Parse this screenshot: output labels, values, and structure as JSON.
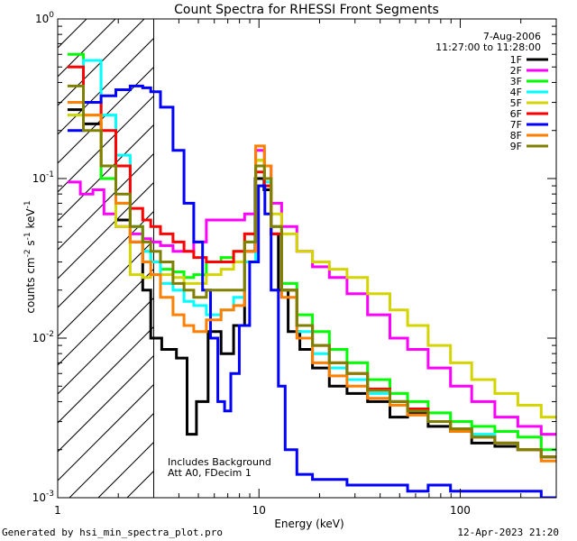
{
  "chart_data": {
    "type": "line",
    "title": "Count Spectra for RHESSI Front Segments",
    "xlabel": "Energy (keV)",
    "ylabel_base": "counts cm",
    "ylabel_exp1": "-2",
    "ylabel_mid": " s",
    "ylabel_exp2": "-1",
    "ylabel_end": " keV",
    "ylabel_exp3": "-1",
    "x_scale": "log",
    "y_scale": "log",
    "xlim": [
      1,
      300
    ],
    "ylim": [
      0.001,
      1
    ],
    "x_ticks": [
      {
        "value": 1,
        "label": "1"
      },
      {
        "value": 10,
        "label": "10"
      },
      {
        "value": 100,
        "label": "100"
      }
    ],
    "y_ticks": [
      {
        "value": 1,
        "base": "10",
        "exp": "0"
      },
      {
        "value": 0.1,
        "base": "10",
        "exp": "-1"
      },
      {
        "value": 0.01,
        "base": "10",
        "exp": "-2"
      },
      {
        "value": 0.001,
        "base": "10",
        "exp": "-3"
      }
    ],
    "date_label": "7-Aug-2006",
    "time_label": "11:27:00 to 11:28:00",
    "shaded_region_keV": [
      1,
      3
    ],
    "annotation_1": "Includes Background",
    "annotation_2": "Att A0, FDecim 1",
    "series": [
      {
        "name": "1F",
        "color": "#000000",
        "points": [
          [
            1.2,
            0.27
          ],
          [
            1.5,
            0.22
          ],
          [
            1.8,
            0.12
          ],
          [
            2.1,
            0.055
          ],
          [
            2.5,
            0.04
          ],
          [
            2.8,
            0.02
          ],
          [
            3.0,
            0.01
          ],
          [
            3.6,
            0.0085
          ],
          [
            4.2,
            0.0075
          ],
          [
            4.6,
            0.0025
          ],
          [
            5.2,
            0.004
          ],
          [
            6.0,
            0.011
          ],
          [
            7.0,
            0.008
          ],
          [
            8.0,
            0.012
          ],
          [
            9.0,
            0.035
          ],
          [
            10.2,
            0.1
          ],
          [
            11.0,
            0.085
          ],
          [
            12.0,
            0.045
          ],
          [
            13.0,
            0.02
          ],
          [
            15.0,
            0.011
          ],
          [
            17.0,
            0.0085
          ],
          [
            20.0,
            0.0065
          ],
          [
            25.0,
            0.005
          ],
          [
            30.0,
            0.0045
          ],
          [
            40.0,
            0.004
          ],
          [
            50.0,
            0.0032
          ],
          [
            60.0,
            0.0034
          ],
          [
            80.0,
            0.0028
          ],
          [
            100.0,
            0.0026
          ],
          [
            130.0,
            0.0022
          ],
          [
            170.0,
            0.0021
          ],
          [
            220.0,
            0.002
          ],
          [
            290.0,
            0.0018
          ]
        ]
      },
      {
        "name": "2F",
        "color": "#ff00ff",
        "points": [
          [
            1.2,
            0.095
          ],
          [
            1.4,
            0.08
          ],
          [
            1.6,
            0.085
          ],
          [
            1.8,
            0.06
          ],
          [
            2.1,
            0.05
          ],
          [
            2.5,
            0.045
          ],
          [
            2.8,
            0.042
          ],
          [
            3.0,
            0.04
          ],
          [
            3.5,
            0.038
          ],
          [
            4.0,
            0.035
          ],
          [
            4.5,
            0.035
          ],
          [
            5.0,
            0.04
          ],
          [
            6.0,
            0.055
          ],
          [
            7.0,
            0.055
          ],
          [
            8.0,
            0.055
          ],
          [
            9.0,
            0.06
          ],
          [
            10.3,
            0.15
          ],
          [
            11.0,
            0.12
          ],
          [
            12.0,
            0.07
          ],
          [
            14.0,
            0.05
          ],
          [
            17.0,
            0.035
          ],
          [
            20.0,
            0.028
          ],
          [
            25.0,
            0.024
          ],
          [
            30.0,
            0.019
          ],
          [
            40.0,
            0.014
          ],
          [
            50.0,
            0.01
          ],
          [
            60.0,
            0.0085
          ],
          [
            80.0,
            0.0065
          ],
          [
            100.0,
            0.005
          ],
          [
            130.0,
            0.004
          ],
          [
            170.0,
            0.0032
          ],
          [
            220.0,
            0.0028
          ],
          [
            290.0,
            0.0025
          ]
        ]
      },
      {
        "name": "3F",
        "color": "#00ff00",
        "points": [
          [
            1.2,
            0.6
          ],
          [
            1.5,
            0.3
          ],
          [
            1.8,
            0.1
          ],
          [
            2.1,
            0.07
          ],
          [
            2.5,
            0.05
          ],
          [
            2.8,
            0.035
          ],
          [
            3.0,
            0.03
          ],
          [
            3.5,
            0.027
          ],
          [
            4.0,
            0.026
          ],
          [
            4.5,
            0.024
          ],
          [
            5.0,
            0.025
          ],
          [
            6.0,
            0.03
          ],
          [
            7.0,
            0.032
          ],
          [
            8.0,
            0.035
          ],
          [
            9.0,
            0.04
          ],
          [
            10.3,
            0.13
          ],
          [
            11.0,
            0.1
          ],
          [
            12.0,
            0.05
          ],
          [
            14.0,
            0.022
          ],
          [
            17.0,
            0.014
          ],
          [
            20.0,
            0.011
          ],
          [
            25.0,
            0.0085
          ],
          [
            30.0,
            0.007
          ],
          [
            40.0,
            0.0055
          ],
          [
            50.0,
            0.0045
          ],
          [
            60.0,
            0.004
          ],
          [
            80.0,
            0.0034
          ],
          [
            100.0,
            0.003
          ],
          [
            130.0,
            0.0028
          ],
          [
            170.0,
            0.0026
          ],
          [
            220.0,
            0.0024
          ],
          [
            290.0,
            0.002
          ]
        ]
      },
      {
        "name": "4F",
        "color": "#00ffff",
        "points": [
          [
            1.2,
            0.25
          ],
          [
            1.5,
            0.55
          ],
          [
            1.8,
            0.25
          ],
          [
            2.1,
            0.14
          ],
          [
            2.5,
            0.05
          ],
          [
            2.8,
            0.035
          ],
          [
            3.0,
            0.03
          ],
          [
            3.5,
            0.022
          ],
          [
            4.0,
            0.02
          ],
          [
            4.5,
            0.017
          ],
          [
            5.0,
            0.016
          ],
          [
            6.0,
            0.014
          ],
          [
            7.0,
            0.015
          ],
          [
            8.0,
            0.018
          ],
          [
            9.0,
            0.03
          ],
          [
            10.3,
            0.12
          ],
          [
            11.0,
            0.095
          ],
          [
            12.0,
            0.05
          ],
          [
            14.0,
            0.02
          ],
          [
            17.0,
            0.011
          ],
          [
            20.0,
            0.008
          ],
          [
            25.0,
            0.0065
          ],
          [
            30.0,
            0.0055
          ],
          [
            40.0,
            0.0045
          ],
          [
            50.0,
            0.004
          ],
          [
            60.0,
            0.0035
          ],
          [
            80.0,
            0.003
          ],
          [
            100.0,
            0.0027
          ],
          [
            130.0,
            0.0025
          ],
          [
            170.0,
            0.0022
          ],
          [
            220.0,
            0.002
          ],
          [
            290.0,
            0.0018
          ]
        ]
      },
      {
        "name": "5F",
        "color": "#d4d400",
        "points": [
          [
            1.2,
            0.25
          ],
          [
            1.5,
            0.25
          ],
          [
            1.8,
            0.12
          ],
          [
            2.1,
            0.05
          ],
          [
            2.5,
            0.025
          ],
          [
            2.8,
            0.024
          ],
          [
            3.0,
            0.025
          ],
          [
            3.5,
            0.025
          ],
          [
            4.0,
            0.024
          ],
          [
            4.5,
            0.022
          ],
          [
            5.0,
            0.022
          ],
          [
            6.0,
            0.025
          ],
          [
            7.0,
            0.027
          ],
          [
            8.0,
            0.03
          ],
          [
            9.0,
            0.045
          ],
          [
            10.3,
            0.13
          ],
          [
            11.0,
            0.1
          ],
          [
            12.0,
            0.06
          ],
          [
            14.0,
            0.045
          ],
          [
            17.0,
            0.035
          ],
          [
            20.0,
            0.03
          ],
          [
            25.0,
            0.027
          ],
          [
            30.0,
            0.024
          ],
          [
            40.0,
            0.019
          ],
          [
            50.0,
            0.015
          ],
          [
            60.0,
            0.012
          ],
          [
            80.0,
            0.009
          ],
          [
            100.0,
            0.007
          ],
          [
            130.0,
            0.0055
          ],
          [
            170.0,
            0.0045
          ],
          [
            220.0,
            0.0038
          ],
          [
            290.0,
            0.0032
          ]
        ]
      },
      {
        "name": "6F",
        "color": "#ff0000",
        "points": [
          [
            1.2,
            0.5
          ],
          [
            1.5,
            0.3
          ],
          [
            1.8,
            0.2
          ],
          [
            2.1,
            0.12
          ],
          [
            2.5,
            0.065
          ],
          [
            2.8,
            0.055
          ],
          [
            3.0,
            0.05
          ],
          [
            3.5,
            0.045
          ],
          [
            4.0,
            0.04
          ],
          [
            4.5,
            0.035
          ],
          [
            5.0,
            0.032
          ],
          [
            6.0,
            0.03
          ],
          [
            7.0,
            0.03
          ],
          [
            8.0,
            0.035
          ],
          [
            9.0,
            0.045
          ],
          [
            10.3,
            0.11
          ],
          [
            11.0,
            0.09
          ],
          [
            12.0,
            0.045
          ],
          [
            14.0,
            0.02
          ],
          [
            17.0,
            0.012
          ],
          [
            20.0,
            0.009
          ],
          [
            25.0,
            0.007
          ],
          [
            30.0,
            0.006
          ],
          [
            40.0,
            0.0048
          ],
          [
            50.0,
            0.004
          ],
          [
            60.0,
            0.0036
          ],
          [
            80.0,
            0.003
          ],
          [
            100.0,
            0.0027
          ],
          [
            130.0,
            0.0024
          ],
          [
            170.0,
            0.0022
          ],
          [
            220.0,
            0.002
          ],
          [
            290.0,
            0.0018
          ]
        ]
      },
      {
        "name": "7F",
        "color": "#0000ff",
        "points": [
          [
            1.2,
            0.2
          ],
          [
            1.5,
            0.3
          ],
          [
            1.8,
            0.33
          ],
          [
            2.1,
            0.36
          ],
          [
            2.5,
            0.38
          ],
          [
            2.8,
            0.37
          ],
          [
            3.0,
            0.35
          ],
          [
            3.5,
            0.28
          ],
          [
            4.0,
            0.15
          ],
          [
            4.5,
            0.07
          ],
          [
            5.0,
            0.04
          ],
          [
            5.5,
            0.02
          ],
          [
            6.0,
            0.01
          ],
          [
            6.5,
            0.004
          ],
          [
            7.0,
            0.0035
          ],
          [
            7.5,
            0.006
          ],
          [
            8.5,
            0.012
          ],
          [
            9.5,
            0.03
          ],
          [
            10.4,
            0.09
          ],
          [
            11.0,
            0.06
          ],
          [
            12.0,
            0.02
          ],
          [
            13.0,
            0.005
          ],
          [
            14.0,
            0.002
          ],
          [
            17.0,
            0.0014
          ],
          [
            20.0,
            0.0013
          ],
          [
            25.0,
            0.0013
          ],
          [
            30.0,
            0.0012
          ],
          [
            40.0,
            0.0012
          ],
          [
            50.0,
            0.0012
          ],
          [
            60.0,
            0.0011
          ],
          [
            80.0,
            0.0012
          ],
          [
            100.0,
            0.0011
          ],
          [
            130.0,
            0.0011
          ],
          [
            170.0,
            0.0011
          ],
          [
            220.0,
            0.0011
          ],
          [
            290.0,
            0.001
          ]
        ]
      },
      {
        "name": "8F",
        "color": "#ff7f00",
        "points": [
          [
            1.2,
            0.3
          ],
          [
            1.5,
            0.25
          ],
          [
            1.8,
            0.12
          ],
          [
            2.1,
            0.07
          ],
          [
            2.5,
            0.04
          ],
          [
            2.8,
            0.03
          ],
          [
            3.0,
            0.025
          ],
          [
            3.5,
            0.018
          ],
          [
            4.0,
            0.014
          ],
          [
            4.5,
            0.012
          ],
          [
            5.0,
            0.011
          ],
          [
            6.0,
            0.013
          ],
          [
            7.0,
            0.015
          ],
          [
            8.0,
            0.016
          ],
          [
            9.0,
            0.035
          ],
          [
            10.3,
            0.16
          ],
          [
            11.0,
            0.12
          ],
          [
            12.0,
            0.05
          ],
          [
            14.0,
            0.018
          ],
          [
            17.0,
            0.01
          ],
          [
            20.0,
            0.007
          ],
          [
            25.0,
            0.0058
          ],
          [
            30.0,
            0.005
          ],
          [
            40.0,
            0.0042
          ],
          [
            50.0,
            0.0038
          ],
          [
            60.0,
            0.0033
          ],
          [
            80.0,
            0.003
          ],
          [
            100.0,
            0.0026
          ],
          [
            130.0,
            0.0024
          ],
          [
            170.0,
            0.0022
          ],
          [
            220.0,
            0.002
          ],
          [
            290.0,
            0.0017
          ]
        ]
      },
      {
        "name": "9F",
        "color": "#808000",
        "points": [
          [
            1.2,
            0.38
          ],
          [
            1.5,
            0.2
          ],
          [
            1.8,
            0.12
          ],
          [
            2.1,
            0.08
          ],
          [
            2.5,
            0.05
          ],
          [
            2.8,
            0.04
          ],
          [
            3.0,
            0.035
          ],
          [
            3.5,
            0.03
          ],
          [
            4.0,
            0.022
          ],
          [
            4.5,
            0.02
          ],
          [
            5.0,
            0.018
          ],
          [
            6.0,
            0.02
          ],
          [
            7.0,
            0.02
          ],
          [
            8.0,
            0.02
          ],
          [
            9.0,
            0.04
          ],
          [
            10.3,
            0.12
          ],
          [
            11.0,
            0.1
          ],
          [
            12.0,
            0.05
          ],
          [
            14.0,
            0.02
          ],
          [
            17.0,
            0.012
          ],
          [
            20.0,
            0.009
          ],
          [
            25.0,
            0.007
          ],
          [
            30.0,
            0.006
          ],
          [
            40.0,
            0.0047
          ],
          [
            50.0,
            0.004
          ],
          [
            60.0,
            0.0035
          ],
          [
            80.0,
            0.003
          ],
          [
            100.0,
            0.0027
          ],
          [
            130.0,
            0.0024
          ],
          [
            170.0,
            0.0022
          ],
          [
            220.0,
            0.002
          ],
          [
            290.0,
            0.0018
          ]
        ]
      }
    ]
  },
  "footer": {
    "generated": "Generated by hsi_min_spectra_plot.pro",
    "timestamp": "12-Apr-2023 21:20"
  }
}
